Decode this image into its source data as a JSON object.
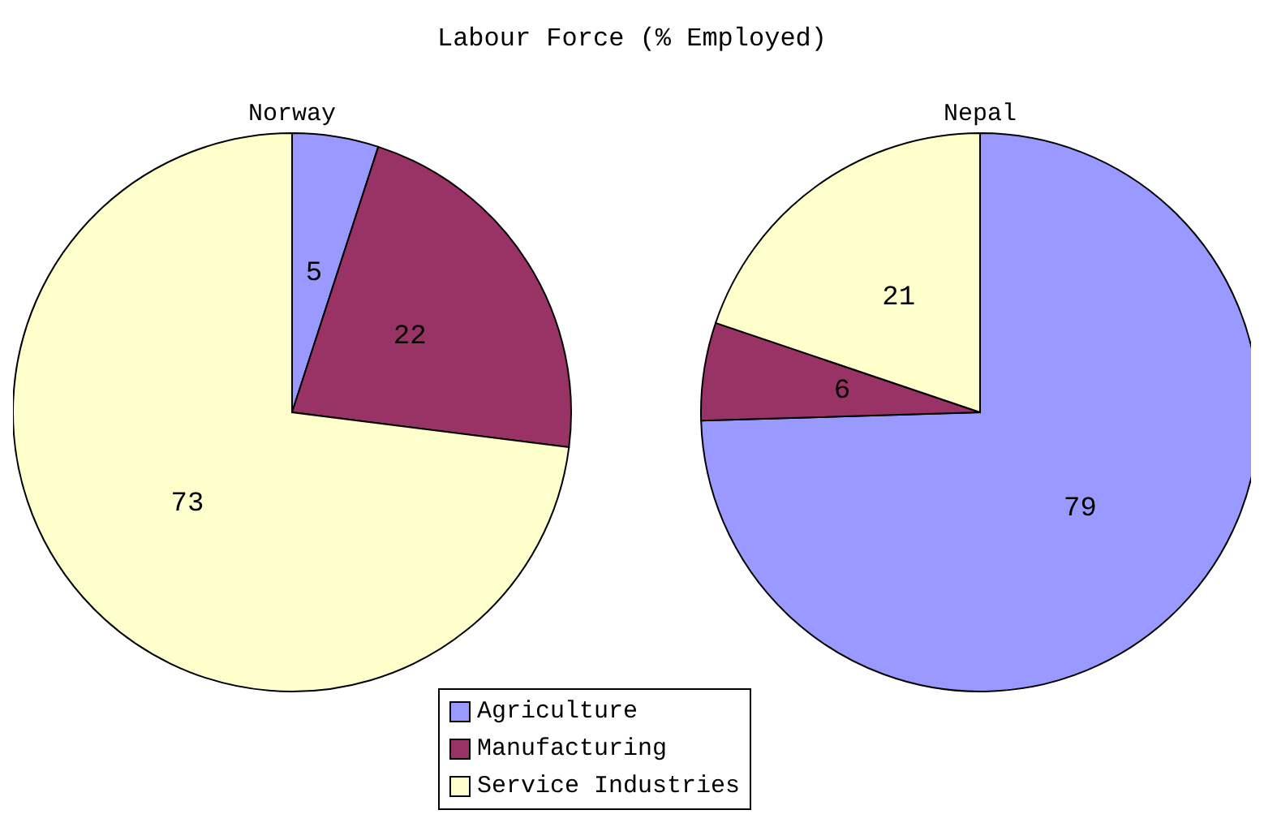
{
  "chart_data": {
    "type": "pie",
    "title": "Labour Force (% Employed)",
    "categories": [
      "Agriculture",
      "Manufacturing",
      "Service Industries"
    ],
    "colors": [
      "#9999ff",
      "#993366",
      "#ffffcc"
    ],
    "data_labels": true,
    "legend": "bottom",
    "series": [
      {
        "name": "Norway",
        "values": [
          5,
          22,
          73
        ]
      },
      {
        "name": "Nepal",
        "values": [
          79,
          6,
          21
        ]
      }
    ]
  }
}
